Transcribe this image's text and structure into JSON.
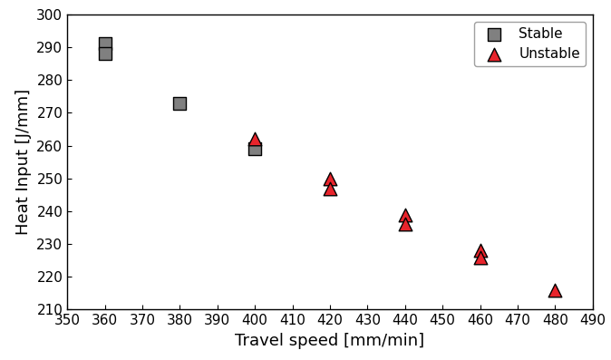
{
  "chart_data": {
    "type": "scatter",
    "x_label": "Travel speed [mm/min]",
    "y_label": "Heat Input [J/mm]",
    "xlim": [
      350,
      490
    ],
    "xticks": [
      350,
      360,
      370,
      380,
      390,
      400,
      410,
      420,
      430,
      440,
      450,
      460,
      470,
      480,
      490
    ],
    "ylim": [
      210,
      300
    ],
    "yticks": [
      210,
      220,
      230,
      240,
      250,
      260,
      270,
      280,
      290,
      300
    ],
    "legend": "upper right",
    "series": [
      {
        "name": "Stable",
        "color": "#808080",
        "marker": "square",
        "x": [
          360,
          360,
          380,
          400
        ],
        "values": [
          291,
          288,
          273,
          259
        ]
      },
      {
        "name": "Unstable",
        "color": "#e8242c",
        "marker": "triangle",
        "x": [
          400,
          420,
          420,
          440,
          440,
          460,
          460,
          480
        ],
        "values": [
          262,
          250,
          247,
          239,
          236,
          228,
          226,
          216
        ]
      }
    ]
  }
}
